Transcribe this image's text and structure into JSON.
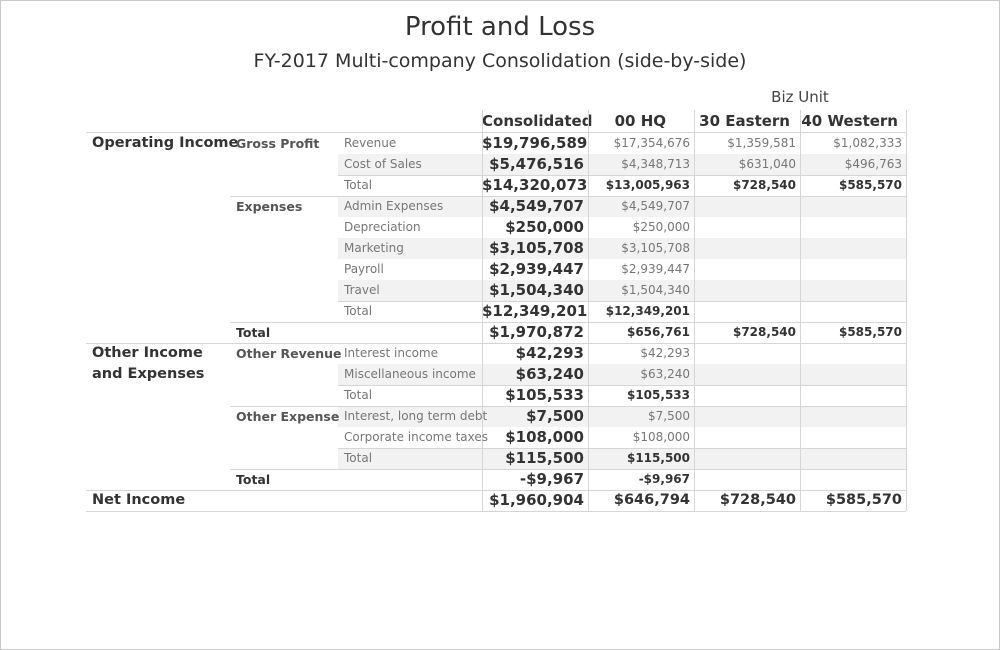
{
  "title": "Profit and Loss",
  "subtitle": "FY-2017 Multi-company Consolidation (side-by-side)",
  "column_group_label": "Biz Unit",
  "columns": [
    "Consolidated",
    "00 HQ",
    "30 Eastern",
    "40 Western"
  ],
  "groups": [
    {
      "label": "Operating Income"
    },
    {
      "label": "Other Income and Expenses"
    },
    {
      "label": "Net Income"
    }
  ],
  "subgroups": [
    "Gross Profit",
    "Expenses",
    "Total",
    "Other Revenue",
    "Other Expense",
    "Total"
  ],
  "rows": [
    {
      "label": "Revenue",
      "values": [
        "$19,796,589",
        "$17,354,676",
        "$1,359,581",
        "$1,082,333"
      ]
    },
    {
      "label": "Cost of Sales",
      "values": [
        "$5,476,516",
        "$4,348,713",
        "$631,040",
        "$496,763"
      ]
    },
    {
      "label": "Total",
      "values": [
        "$14,320,073",
        "$13,005,963",
        "$728,540",
        "$585,570"
      ]
    },
    {
      "label": "Admin Expenses",
      "values": [
        "$4,549,707",
        "$4,549,707",
        "",
        ""
      ]
    },
    {
      "label": "Depreciation",
      "values": [
        "$250,000",
        "$250,000",
        "",
        ""
      ]
    },
    {
      "label": "Marketing",
      "values": [
        "$3,105,708",
        "$3,105,708",
        "",
        ""
      ]
    },
    {
      "label": "Payroll",
      "values": [
        "$2,939,447",
        "$2,939,447",
        "",
        ""
      ]
    },
    {
      "label": "Travel",
      "values": [
        "$1,504,340",
        "$1,504,340",
        "",
        ""
      ]
    },
    {
      "label": "Total",
      "values": [
        "$12,349,201",
        "$12,349,201",
        "",
        ""
      ]
    },
    {
      "label": "",
      "values": [
        "$1,970,872",
        "$656,761",
        "$728,540",
        "$585,570"
      ]
    },
    {
      "label": "Interest income",
      "values": [
        "$42,293",
        "$42,293",
        "",
        ""
      ]
    },
    {
      "label": "Miscellaneous income",
      "values": [
        "$63,240",
        "$63,240",
        "",
        ""
      ]
    },
    {
      "label": "Total",
      "values": [
        "$105,533",
        "$105,533",
        "",
        ""
      ]
    },
    {
      "label": "Interest, long term debt",
      "values": [
        "$7,500",
        "$7,500",
        "",
        ""
      ]
    },
    {
      "label": "Corporate income taxes",
      "values": [
        "$108,000",
        "$108,000",
        "",
        ""
      ]
    },
    {
      "label": "Total",
      "values": [
        "$115,500",
        "$115,500",
        "",
        ""
      ]
    },
    {
      "label": "",
      "values": [
        "-$9,967",
        "-$9,967",
        "",
        ""
      ]
    },
    {
      "label": "",
      "values": [
        "$1,960,904",
        "$646,794",
        "$728,540",
        "$585,570"
      ]
    }
  ],
  "chart_data": {
    "type": "table",
    "title": "Profit and Loss",
    "subtitle": "FY-2017 Multi-company Consolidation (side-by-side)",
    "column_group": "Biz Unit",
    "columns": [
      "Consolidated",
      "00 HQ",
      "30 Eastern",
      "40 Western"
    ],
    "records": [
      {
        "group": "Operating Income",
        "subgroup": "Gross Profit",
        "line": "Revenue",
        "Consolidated": 19796589,
        "00 HQ": 17354676,
        "30 Eastern": 1359581,
        "40 Western": 1082333
      },
      {
        "group": "Operating Income",
        "subgroup": "Gross Profit",
        "line": "Cost of Sales",
        "Consolidated": 5476516,
        "00 HQ": 4348713,
        "30 Eastern": 631040,
        "40 Western": 496763
      },
      {
        "group": "Operating Income",
        "subgroup": "Gross Profit",
        "line": "Total",
        "Consolidated": 14320073,
        "00 HQ": 13005963,
        "30 Eastern": 728540,
        "40 Western": 585570
      },
      {
        "group": "Operating Income",
        "subgroup": "Expenses",
        "line": "Admin Expenses",
        "Consolidated": 4549707,
        "00 HQ": 4549707
      },
      {
        "group": "Operating Income",
        "subgroup": "Expenses",
        "line": "Depreciation",
        "Consolidated": 250000,
        "00 HQ": 250000
      },
      {
        "group": "Operating Income",
        "subgroup": "Expenses",
        "line": "Marketing",
        "Consolidated": 3105708,
        "00 HQ": 3105708
      },
      {
        "group": "Operating Income",
        "subgroup": "Expenses",
        "line": "Payroll",
        "Consolidated": 2939447,
        "00 HQ": 2939447
      },
      {
        "group": "Operating Income",
        "subgroup": "Expenses",
        "line": "Travel",
        "Consolidated": 1504340,
        "00 HQ": 1504340
      },
      {
        "group": "Operating Income",
        "subgroup": "Expenses",
        "line": "Total",
        "Consolidated": 12349201,
        "00 HQ": 12349201
      },
      {
        "group": "Operating Income",
        "subgroup": "Total",
        "line": "",
        "Consolidated": 1970872,
        "00 HQ": 656761,
        "30 Eastern": 728540,
        "40 Western": 585570
      },
      {
        "group": "Other Income and Expenses",
        "subgroup": "Other Revenue",
        "line": "Interest income",
        "Consolidated": 42293,
        "00 HQ": 42293
      },
      {
        "group": "Other Income and Expenses",
        "subgroup": "Other Revenue",
        "line": "Miscellaneous income",
        "Consolidated": 63240,
        "00 HQ": 63240
      },
      {
        "group": "Other Income and Expenses",
        "subgroup": "Other Revenue",
        "line": "Total",
        "Consolidated": 105533,
        "00 HQ": 105533
      },
      {
        "group": "Other Income and Expenses",
        "subgroup": "Other Expense",
        "line": "Interest, long term debt",
        "Consolidated": 7500,
        "00 HQ": 7500
      },
      {
        "group": "Other Income and Expenses",
        "subgroup": "Other Expense",
        "line": "Corporate income taxes",
        "Consolidated": 108000,
        "00 HQ": 108000
      },
      {
        "group": "Other Income and Expenses",
        "subgroup": "Other Expense",
        "line": "Total",
        "Consolidated": 115500,
        "00 HQ": 115500
      },
      {
        "group": "Other Income and Expenses",
        "subgroup": "Total",
        "line": "",
        "Consolidated": -9967,
        "00 HQ": -9967
      },
      {
        "group": "Net Income",
        "subgroup": "",
        "line": "",
        "Consolidated": 1960904,
        "00 HQ": 646794,
        "30 Eastern": 728540,
        "40 Western": 585570
      }
    ]
  }
}
